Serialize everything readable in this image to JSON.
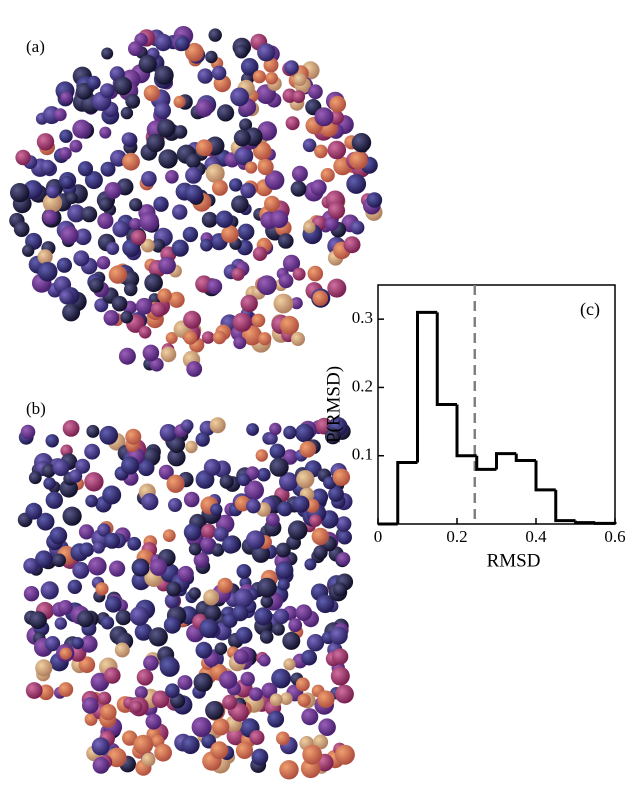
{
  "panels": {
    "a": "(a)",
    "b": "(b)"
  },
  "chart_data": {
    "type": "histogram",
    "annotation": "(c)",
    "x_label": "RMSD",
    "y_label": "P(RMSD)",
    "bins": [
      0,
      0.05,
      0.1,
      0.15,
      0.2,
      0.25,
      0.3,
      0.35,
      0.4,
      0.45,
      0.5,
      0.55,
      0.6
    ],
    "values": [
      0,
      0.09,
      0.31,
      0.175,
      0.1,
      0.08,
      0.103,
      0.093,
      0.05,
      0.005,
      0.002,
      0.001
    ],
    "color": "#000000",
    "vline": 0.245,
    "vline_color": "#808080",
    "xlim": [
      0,
      0.6
    ],
    "ylim": [
      0,
      0.35
    ],
    "xticks": [
      0,
      0.2,
      0.4,
      0.6
    ],
    "yticks": [
      0.1,
      0.2,
      0.3
    ]
  }
}
